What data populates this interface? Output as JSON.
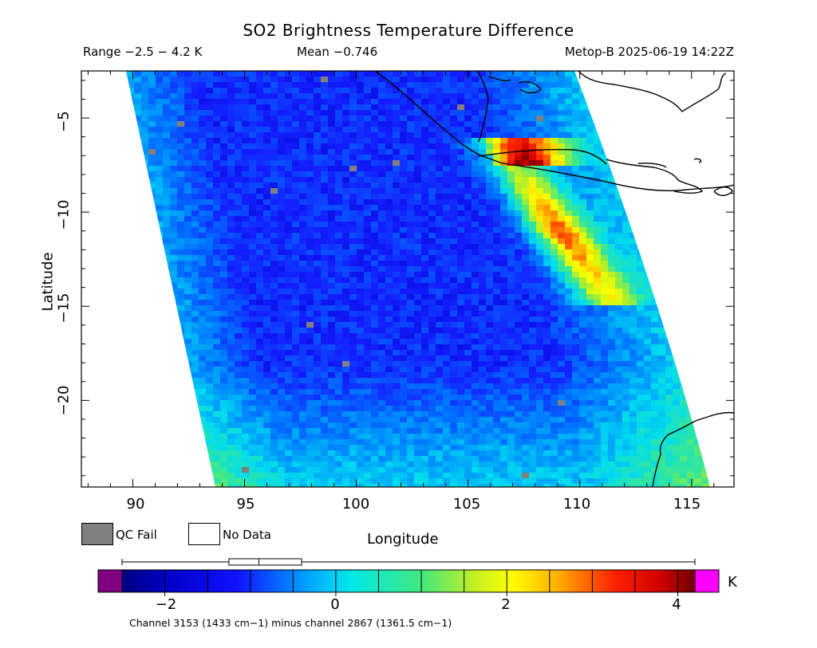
{
  "header": {
    "title": "SO2 Brightness Temperature Difference",
    "range": "Range −2.5 − 4.2 K",
    "mean": "Mean −0.746",
    "satellite": "Metop-B 2025-06-19 14:22Z"
  },
  "axes": {
    "xlabel": "Longitude",
    "ylabel": "Latitude",
    "xticks": [
      "90",
      "95",
      "100",
      "105",
      "110",
      "115"
    ],
    "yticks": [
      "−5",
      "−10",
      "−15",
      "−20"
    ],
    "lon_range": [
      87.7,
      116.9
    ],
    "lat_range": [
      -24.6,
      -2.5
    ]
  },
  "legend": {
    "qc_fail": "QC Fail",
    "no_data": "No Data",
    "qc_color": "#808080",
    "no_data_color": "#ffffff"
  },
  "colorbar": {
    "unit": "K",
    "ticks": [
      "−2",
      "0",
      "2",
      "4"
    ],
    "tick_values": [
      -2,
      0,
      2,
      4
    ],
    "vmin": -2.5,
    "vmax": 4.2,
    "under_color": "#800080",
    "over_color": "#ff00ff",
    "box_stats": {
      "whisker_low": -2.5,
      "q1": -1.25,
      "median": -0.9,
      "q3": -0.4,
      "whisker_high": 4.2
    }
  },
  "footnote": "Channel 3153 (1433 cm−1) minus channel 2867 (1361.5 cm−1)",
  "colors": {
    "plume": "#e01010",
    "background_low": "#1a3cf0",
    "background_mid": "#2ec8f0"
  }
}
